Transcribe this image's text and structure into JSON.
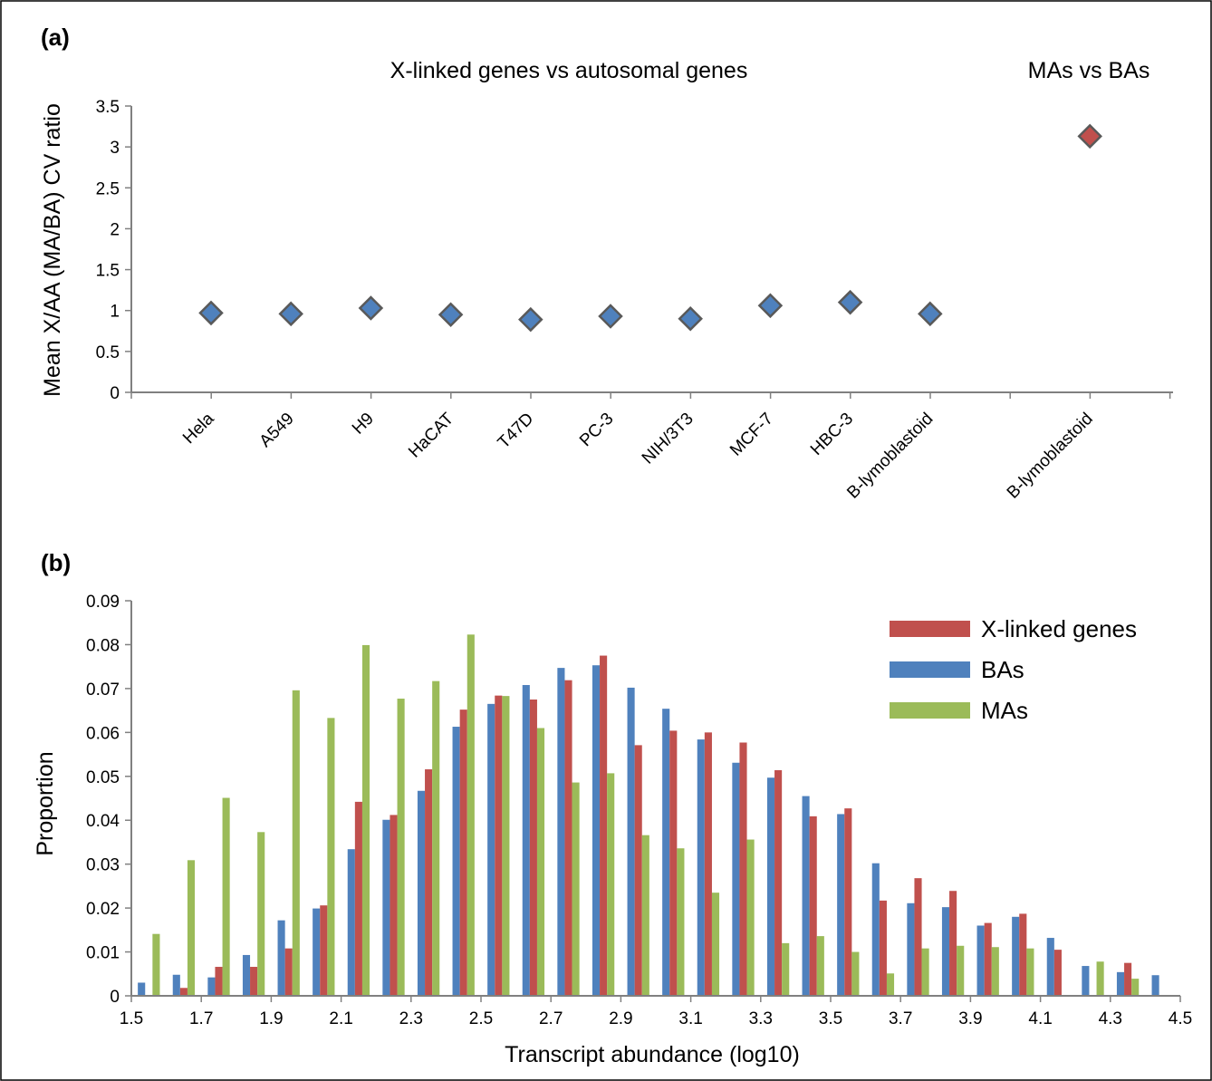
{
  "chart_data": [
    {
      "panel": "(a)",
      "type": "scatter",
      "ylabel": "Mean X/AA (MA/BA) CV ratio",
      "ylim": [
        0,
        3.5
      ],
      "ytick_labels": [
        "0",
        "0.5",
        "1",
        "1.5",
        "2",
        "2.5",
        "3",
        "3.5"
      ],
      "groups": [
        {
          "label": "X-linked genes vs autosomal genes",
          "color": "#4f81bd",
          "categories": [
            "Hela",
            "A549",
            "H9",
            "HaCAT",
            "T47D",
            "PC-3",
            "NIH/3T3",
            "MCF-7",
            "HBC-3",
            "B-lymoblastoid"
          ],
          "values": [
            0.97,
            0.96,
            1.03,
            0.95,
            0.89,
            0.93,
            0.9,
            1.06,
            1.1,
            0.96
          ]
        },
        {
          "label": "MAs vs BAs",
          "color": "#c0504d",
          "categories": [
            "B-lymoblastoid"
          ],
          "values": [
            3.13
          ]
        }
      ]
    },
    {
      "panel": "(b)",
      "type": "bar",
      "xlabel": "Transcript abundance (log10)",
      "ylabel": "Proportion",
      "ylim": [
        0,
        0.09
      ],
      "xlim": [
        1.5,
        4.5
      ],
      "xtick_labels": [
        "1.5",
        "1.7",
        "1.9",
        "2.1",
        "2.3",
        "2.5",
        "2.7",
        "2.9",
        "3.1",
        "3.3",
        "3.5",
        "3.7",
        "3.9",
        "4.1",
        "4.3",
        "4.5"
      ],
      "ytick_labels": [
        "0",
        "0.01",
        "0.02",
        "0.03",
        "0.04",
        "0.05",
        "0.06",
        "0.07",
        "0.08",
        "0.09"
      ],
      "legend_position": "top-right",
      "bin_centers": [
        1.55,
        1.65,
        1.75,
        1.85,
        1.95,
        2.05,
        2.15,
        2.25,
        2.35,
        2.45,
        2.55,
        2.65,
        2.75,
        2.85,
        2.95,
        3.05,
        3.15,
        3.25,
        3.35,
        3.45,
        3.55,
        3.65,
        3.75,
        3.85,
        3.95,
        4.05,
        4.15,
        4.25,
        4.35,
        4.45
      ],
      "series": [
        {
          "name": "BAs",
          "color": "#4f81bd",
          "values": [
            0.003,
            0.0048,
            0.0042,
            0.0093,
            0.0172,
            0.0199,
            0.0334,
            0.0401,
            0.0467,
            0.0613,
            0.0665,
            0.0708,
            0.0747,
            0.0753,
            0.0702,
            0.0654,
            0.0584,
            0.0531,
            0.0497,
            0.0455,
            0.0414,
            0.0302,
            0.0211,
            0.0202,
            0.016,
            0.018,
            0.0132,
            0.0068,
            0.0054,
            0.0047
          ]
        },
        {
          "name": "X-linked genes",
          "color": "#c0504d",
          "values": [
            0,
            0.0018,
            0.0066,
            0.0066,
            0.0108,
            0.0206,
            0.0442,
            0.0412,
            0.0516,
            0.0652,
            0.0684,
            0.0675,
            0.0719,
            0.0775,
            0.0571,
            0.0604,
            0.06,
            0.0577,
            0.0514,
            0.0409,
            0.0427,
            0.0217,
            0.0268,
            0.0239,
            0.0166,
            0.0187,
            0.0105,
            0,
            0.0075,
            0
          ]
        },
        {
          "name": "MAs",
          "color": "#9bbb59",
          "values": [
            0.0141,
            0.0309,
            0.0451,
            0.0373,
            0.0696,
            0.0633,
            0.0799,
            0.0677,
            0.0717,
            0.0823,
            0.0683,
            0.061,
            0.0486,
            0.0507,
            0.0366,
            0.0336,
            0.0235,
            0.0356,
            0.012,
            0.0136,
            0.01,
            0.0051,
            0.0108,
            0.0114,
            0.0111,
            0.0108,
            0,
            0.0078,
            0.0039,
            0
          ]
        }
      ]
    }
  ]
}
